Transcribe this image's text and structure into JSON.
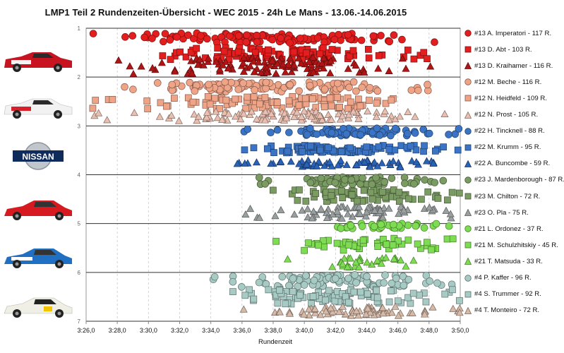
{
  "page": {
    "title": "LMP1 Teil 2 Rundenzeiten-Übersicht - WEC 2015  - 24h Le Mans - 13.06.-14.06.2015"
  },
  "teams": [
    {
      "name": "car-rebellion-13",
      "icon": "rebellion-13-car-icon"
    },
    {
      "name": "car-rebellion-12",
      "icon": "rebellion-12-car-icon"
    },
    {
      "name": "nissan-logo",
      "logo_text": "NISSAN",
      "icon": "nissan-logo-icon"
    },
    {
      "name": "car-nissan-23",
      "icon": "nissan-23-car-icon"
    },
    {
      "name": "car-nissan-21",
      "icon": "nissan-21-car-icon"
    },
    {
      "name": "car-kodewa-4",
      "icon": "kodewa-4-car-icon"
    }
  ],
  "chart_data": {
    "type": "scatter",
    "title": "LMP1 Teil 2 Rundenzeiten-Übersicht - WEC 2015  - 24h Le Mans - 13.06.-14.06.2015",
    "xlabel": "Rundenzeit",
    "ylabel": "",
    "x_unit": "lap time m:ss,s",
    "xlim": [
      "3:26,0",
      "3:50,0"
    ],
    "x_ticks": [
      "3:26,0",
      "3:28,0",
      "3:30,0",
      "3:32,0",
      "3:34,0",
      "3:36,0",
      "3:38,0",
      "3:40,0",
      "3:42,0",
      "3:44,0",
      "3:46,0",
      "3:48,0",
      "3:50,0"
    ],
    "ylim": [
      1,
      7
    ],
    "y_ticks": [
      "1",
      "2",
      "3",
      "4",
      "5",
      "6",
      "7"
    ],
    "grid": "horizontal lines at integer y",
    "legend_position": "right",
    "series": [
      {
        "name": "#13 A. Imperatori - 117 R.",
        "marker": "circle",
        "color": "#e41e1e",
        "y_band": [
          1.1,
          1.3
        ],
        "x_range": [
          "3:26,2",
          "3:48,5"
        ],
        "laps": 117
      },
      {
        "name": "#13 D. Abt - 103 R.",
        "marker": "square",
        "color": "#e41e1e",
        "y_band": [
          1.4,
          1.65
        ],
        "x_range": [
          "3:28,5",
          "3:48,5"
        ],
        "laps": 103
      },
      {
        "name": "#13 D. Kraihamer - 116 R.",
        "marker": "triangle",
        "color": "#b01515",
        "y_band": [
          1.6,
          1.95
        ],
        "x_range": [
          "3:26,4",
          "3:48,5"
        ],
        "laps": 116
      },
      {
        "name": "#12 M. Beche - 116 R.",
        "marker": "circle",
        "color": "#f0a487",
        "y_band": [
          2.1,
          2.3
        ],
        "x_range": [
          "3:26,8",
          "3:48,0"
        ],
        "laps": 116
      },
      {
        "name": "#12 N. Heidfeld - 109 R.",
        "marker": "square",
        "color": "#f0a487",
        "y_band": [
          2.4,
          2.65
        ],
        "x_range": [
          "3:26,0",
          "3:49,5"
        ],
        "laps": 109
      },
      {
        "name": "#12 N. Prost - 105 R.",
        "marker": "triangle",
        "color": "#e8bfb0",
        "y_band": [
          2.7,
          2.9
        ],
        "x_range": [
          "3:26,0",
          "3:49,5"
        ],
        "laps": 105
      },
      {
        "name": "#22 H. Tincknell - 88 R.",
        "marker": "circle",
        "color": "#3b74c4",
        "y_band": [
          3.05,
          3.2
        ],
        "x_range": [
          "3:36,0",
          "3:50,0"
        ],
        "laps": 88
      },
      {
        "name": "#22 M. Krumm - 95 R.",
        "marker": "square",
        "color": "#3b74c4",
        "y_band": [
          3.4,
          3.55
        ],
        "x_range": [
          "3:35,0",
          "3:50,0"
        ],
        "laps": 95
      },
      {
        "name": "#22 A. Buncombe - 59 R.",
        "marker": "triangle",
        "color": "#2a62b5",
        "y_band": [
          3.7,
          3.85
        ],
        "x_range": [
          "3:35,5",
          "3:50,0"
        ],
        "laps": 59
      },
      {
        "name": "#23 J. Mardenborough - 87 R.",
        "marker": "circle",
        "color": "#7a9b62",
        "y_band": [
          4.05,
          4.2
        ],
        "x_range": [
          "3:36,8",
          "3:50,0"
        ],
        "laps": 87
      },
      {
        "name": "#23 M. Chilton - 72 R.",
        "marker": "square",
        "color": "#7a9b62",
        "y_band": [
          4.3,
          4.55
        ],
        "x_range": [
          "3:37,0",
          "3:50,0"
        ],
        "laps": 72
      },
      {
        "name": "#23 O. Pla - 75 R.",
        "marker": "triangle",
        "color": "#9aa0a0",
        "y_band": [
          4.65,
          4.9
        ],
        "x_range": [
          "3:36,0",
          "3:50,0"
        ],
        "laps": 75
      },
      {
        "name": "#21 L. Ordonez - 37 R.",
        "marker": "circle",
        "color": "#7ddc52",
        "y_band": [
          5.0,
          5.1
        ],
        "x_range": [
          "3:41,5",
          "3:49,5"
        ],
        "laps": 37
      },
      {
        "name": "#21 M. Schulzhitskiy - 45 R.",
        "marker": "square",
        "color": "#7ddc52",
        "y_band": [
          5.3,
          5.55
        ],
        "x_range": [
          "3:38,0",
          "3:50,0"
        ],
        "laps": 45
      },
      {
        "name": "#21 T. Matsuda - 33 R.",
        "marker": "triangle",
        "color": "#7ddc52",
        "y_band": [
          5.7,
          5.9
        ],
        "x_range": [
          "3:38,5",
          "3:50,0"
        ],
        "laps": 33
      },
      {
        "name": "#4 P. Kaffer - 96 R.",
        "marker": "circle",
        "color": "#a7cbc4",
        "y_band": [
          6.05,
          6.3
        ],
        "x_range": [
          "3:34,0",
          "3:50,0"
        ],
        "laps": 96
      },
      {
        "name": "#4 S. Trummer - 92 R.",
        "marker": "square",
        "color": "#a7cbc4",
        "y_band": [
          6.35,
          6.65
        ],
        "x_range": [
          "3:34,5",
          "3:50,0"
        ],
        "laps": 92
      },
      {
        "name": "#4 T. Monteiro - 72 R.",
        "marker": "triangle",
        "color": "#d7b9a7",
        "y_band": [
          6.7,
          6.9
        ],
        "x_range": [
          "3:36,0",
          "3:50,0"
        ],
        "laps": 72
      }
    ]
  }
}
